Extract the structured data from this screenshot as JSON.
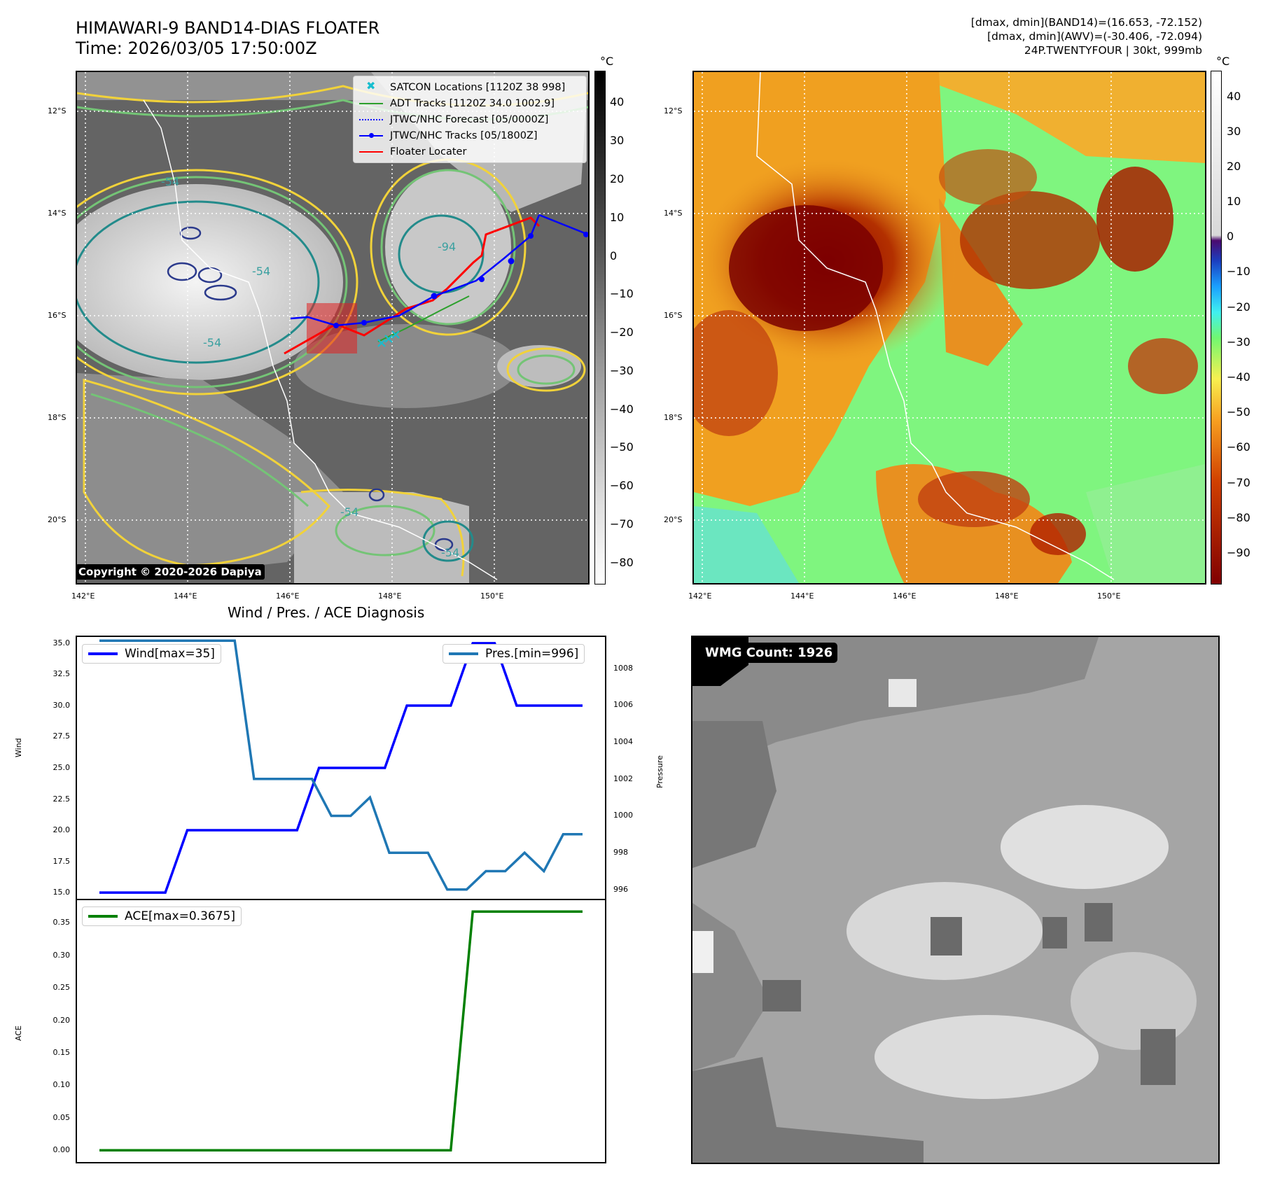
{
  "header": {
    "title_line1": "HIMAWARI-9 BAND14-DIAS FLOATER",
    "title_line2": "Time: 2026/03/05 17:50:00Z",
    "diag_line1": "[dmax, dmin](BAND14)=(16.653, -72.152)",
    "diag_line2": "[dmax, dmin](AWV)=(-30.406, -72.094)",
    "diag_line3": "24P.TWENTYFOUR | 30kt, 999mb"
  },
  "map": {
    "lat_labels": [
      "12°S",
      "14°S",
      "16°S",
      "18°S",
      "20°S"
    ],
    "lon_labels": [
      "142°E",
      "144°E",
      "146°E",
      "148°E",
      "150°E"
    ],
    "contour_labels": [
      "-54",
      "-54",
      "-54",
      "-94",
      "-54",
      "-54"
    ],
    "copyright": "Copyright © 2020-2026 Dapiya",
    "unit": "°C"
  },
  "legend": {
    "items": [
      {
        "label": "SATCON Locations [1120Z 38 998]",
        "color": "#17becf"
      },
      {
        "label": "ADT Tracks [1120Z 34.0 1002.9]",
        "color": "#2ca02c"
      },
      {
        "label": "JTWC/NHC Forecast [05/0000Z]",
        "color": "#0000ff"
      },
      {
        "label": "JTWC/NHC Tracks [05/1800Z]",
        "color": "#0000ff"
      },
      {
        "label": "Floater Locater",
        "color": "#ff0000"
      }
    ]
  },
  "colorbar_gray": {
    "ticks": [
      "40",
      "30",
      "20",
      "10",
      "0",
      "−10",
      "−20",
      "−30",
      "−40",
      "−50",
      "−60",
      "−70",
      "−80"
    ],
    "unit": "°C"
  },
  "colorbar_awv": {
    "ticks": [
      "40",
      "30",
      "20",
      "10",
      "0",
      "−10",
      "−20",
      "−30",
      "−40",
      "−50",
      "−60",
      "−70",
      "−80",
      "−90"
    ],
    "unit": "°C"
  },
  "timeseries": {
    "subtitle": "Wind / Pres. / ACE Diagnosis",
    "wind_legend": "Wind[max=35]",
    "pres_legend": "Pres.[min=996]",
    "ace_legend": "ACE[max=0.3675]",
    "wind_ylabel": "Wind",
    "pres_ylabel": "Pressure",
    "ace_ylabel": "ACE",
    "wind_ticks": [
      "35.0",
      "32.5",
      "30.0",
      "27.5",
      "25.0",
      "22.5",
      "20.0",
      "17.5",
      "15.0"
    ],
    "pres_ticks": [
      "1008",
      "1006",
      "1004",
      "1002",
      "1000",
      "998",
      "996"
    ],
    "ace_ticks": [
      "0.35",
      "0.30",
      "0.25",
      "0.20",
      "0.15",
      "0.10",
      "0.05",
      "0.00"
    ]
  },
  "chart_data": [
    {
      "type": "line",
      "title": "Wind / Pres. / ACE Diagnosis",
      "series": [
        {
          "name": "Wind[max=35]",
          "color": "#0000ff",
          "axis": "left",
          "values": [
            15,
            15,
            15,
            15,
            20,
            20,
            20,
            20,
            20,
            20,
            25,
            25,
            25,
            25,
            30,
            30,
            30,
            35,
            35,
            30,
            30,
            30,
            30
          ]
        },
        {
          "name": "Pres.[min=996]",
          "color": "#1f77b4",
          "axis": "right",
          "values": [
            1009.5,
            1009.5,
            1009.5,
            1009.5,
            1009.5,
            1009.5,
            1009.5,
            1009.5,
            1002,
            1002,
            1002,
            1002,
            1000,
            1000,
            1001,
            998,
            998,
            998,
            996,
            996,
            997,
            997,
            998,
            997,
            999,
            999
          ]
        }
      ],
      "ylabel": "Wind",
      "ylim": [
        14.5,
        35.5
      ],
      "y2label": "Pressure",
      "y2lim": [
        995.5,
        1009.7
      ]
    },
    {
      "type": "line",
      "series": [
        {
          "name": "ACE[max=0.3675]",
          "color": "#008000",
          "values": [
            0,
            0,
            0,
            0,
            0,
            0,
            0,
            0,
            0,
            0,
            0,
            0,
            0,
            0,
            0,
            0,
            0,
            0.3675,
            0.3675,
            0.3675,
            0.3675,
            0.3675,
            0.3675
          ]
        }
      ],
      "ylabel": "ACE",
      "ylim": [
        -0.018,
        0.385
      ]
    }
  ],
  "wmg": {
    "label": "WMG Count: 1926"
  }
}
